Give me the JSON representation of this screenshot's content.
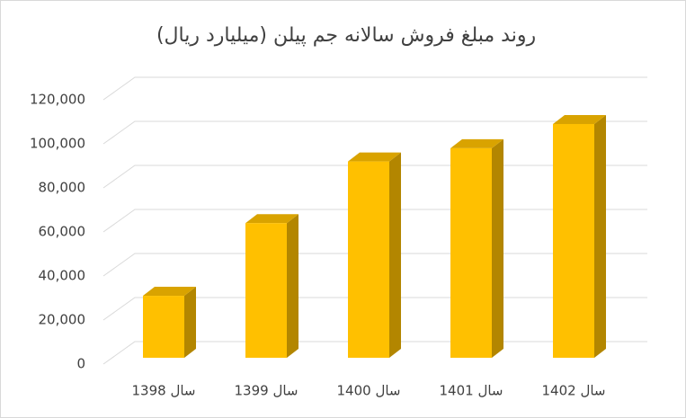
{
  "chart_data": {
    "type": "bar",
    "title": "روند مبلغ فروش سالانه جم پیلن (میلیارد ریال)",
    "categories": [
      "سال 1398",
      "سال 1399",
      "سال 1400",
      "سال 1401",
      "سال 1402"
    ],
    "values": [
      31000,
      64000,
      92000,
      98000,
      109000
    ],
    "color": "#ffc000",
    "ylim": [
      0,
      120000
    ],
    "yticks": [
      0,
      {
        "value": 20000,
        "label": "20,000"
      },
      {
        "value": 40000,
        "label": "40,000"
      },
      {
        "value": 60000,
        "label": "60,000"
      },
      {
        "value": 80000,
        "label": "80,000"
      },
      {
        "value": 100000,
        "label": "100,000"
      },
      {
        "value": 120000,
        "label": "120,000"
      }
    ],
    "grid": true
  }
}
